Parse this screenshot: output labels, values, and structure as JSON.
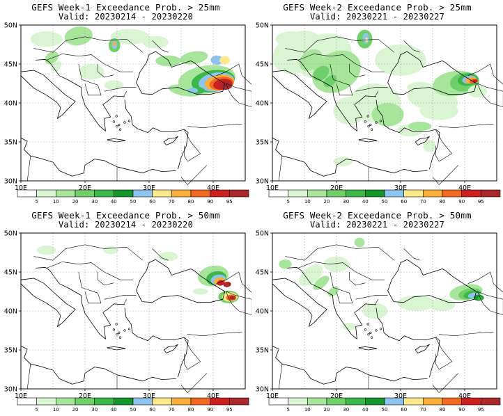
{
  "panels": [
    {
      "title": "GEFS Week-1 Exceedance Prob. > 25mm",
      "valid": "Valid: 20230214 - 20230220"
    },
    {
      "title": "GEFS Week-2 Exceedance Prob. > 25mm",
      "valid": "Valid: 20230221 - 20230227"
    },
    {
      "title": "GEFS Week-1 Exceedance Prob. > 50mm",
      "valid": "Valid: 20230214 - 20230220"
    },
    {
      "title": "GEFS Week-2 Exceedance Prob. > 50mm",
      "valid": "Valid: 20230221 - 20230227"
    }
  ],
  "map": {
    "lat_labels": [
      "50N",
      "45N",
      "40N",
      "35N",
      "30N"
    ],
    "lon_labels": [
      "10E",
      "20E",
      "30E",
      "40E"
    ],
    "lat_range": [
      30,
      50
    ],
    "lon_range": [
      10,
      45
    ],
    "grid": "dotted"
  },
  "colorbar": {
    "labels": [
      "5",
      "10",
      "20",
      "30",
      "40",
      "50",
      "60",
      "70",
      "80",
      "90",
      "95"
    ],
    "colors": [
      "#ffffff",
      "#d9f5d2",
      "#a6e59a",
      "#6fd06a",
      "#3cb84a",
      "#15962a",
      "#8ec5ee",
      "#fde98a",
      "#fcae3a",
      "#f26a22",
      "#cc1f1f",
      "#a8282c"
    ]
  }
}
